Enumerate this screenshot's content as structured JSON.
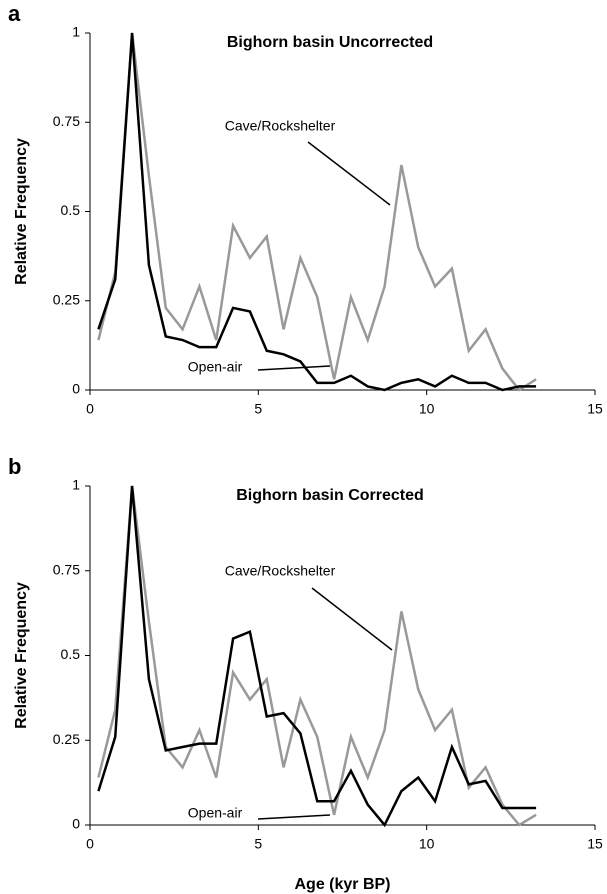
{
  "chart_data": [
    {
      "type": "line",
      "panel_label": "a",
      "title": "Bighorn basin Uncorrected",
      "y_label": "Relative Frequency",
      "xlim": [
        0,
        15
      ],
      "ylim": [
        0,
        1
      ],
      "xticks": [
        0,
        5,
        10,
        15
      ],
      "yticks": [
        0,
        0.25,
        0.5,
        0.75,
        1
      ],
      "x": [
        0.25,
        0.75,
        1.25,
        1.75,
        2.25,
        2.75,
        3.25,
        3.75,
        4.25,
        4.75,
        5.25,
        5.75,
        6.25,
        6.75,
        7.25,
        7.75,
        8.25,
        8.75,
        9.25,
        9.75,
        10.25,
        10.75,
        11.25,
        11.75,
        12.25,
        12.75,
        13.25
      ],
      "series": [
        {
          "name": "Cave/Rockshelter",
          "color": "#999999",
          "values": [
            0.14,
            0.33,
            1.0,
            0.6,
            0.23,
            0.17,
            0.29,
            0.14,
            0.46,
            0.37,
            0.43,
            0.17,
            0.37,
            0.26,
            0.03,
            0.26,
            0.14,
            0.29,
            0.63,
            0.4,
            0.29,
            0.34,
            0.11,
            0.17,
            0.06,
            0,
            0.03
          ]
        },
        {
          "name": "Open-air",
          "color": "#000000",
          "values": [
            0.17,
            0.31,
            1.0,
            0.35,
            0.15,
            0.14,
            0.12,
            0.12,
            0.23,
            0.22,
            0.11,
            0.1,
            0.08,
            0.02,
            0.02,
            0.04,
            0.01,
            0,
            0.02,
            0.03,
            0.01,
            0.04,
            0.02,
            0.02,
            0,
            0.01,
            0.01
          ]
        }
      ]
    },
    {
      "type": "line",
      "panel_label": "b",
      "title": "Bighorn basin Corrected",
      "y_label": "Relative Frequency",
      "x_label": "Age (kyr BP)",
      "xlim": [
        0,
        15
      ],
      "ylim": [
        0,
        1
      ],
      "xticks": [
        0,
        5,
        10,
        15
      ],
      "yticks": [
        0,
        0.25,
        0.5,
        0.75,
        1
      ],
      "x": [
        0.25,
        0.75,
        1.25,
        1.75,
        2.25,
        2.75,
        3.25,
        3.75,
        4.25,
        4.75,
        5.25,
        5.75,
        6.25,
        6.75,
        7.25,
        7.75,
        8.25,
        8.75,
        9.25,
        9.75,
        10.25,
        10.75,
        11.25,
        11.75,
        12.25,
        12.75,
        13.25
      ],
      "series": [
        {
          "name": "Cave/Rockshelter",
          "color": "#999999",
          "values": [
            0.14,
            0.34,
            1.0,
            0.6,
            0.23,
            0.17,
            0.28,
            0.14,
            0.45,
            0.37,
            0.43,
            0.17,
            0.37,
            0.26,
            0.03,
            0.26,
            0.14,
            0.28,
            0.63,
            0.4,
            0.28,
            0.34,
            0.11,
            0.17,
            0.06,
            0,
            0.03
          ]
        },
        {
          "name": "Open-air",
          "color": "#000000",
          "values": [
            0.1,
            0.26,
            1.0,
            0.43,
            0.22,
            0.23,
            0.24,
            0.24,
            0.55,
            0.57,
            0.32,
            0.33,
            0.27,
            0.07,
            0.07,
            0.16,
            0.06,
            0,
            0.1,
            0.14,
            0.07,
            0.23,
            0.12,
            0.13,
            0.05,
            0.05,
            0.05
          ]
        }
      ]
    }
  ]
}
